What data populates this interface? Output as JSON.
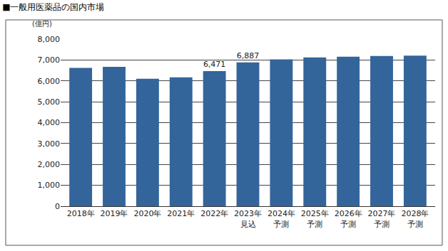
{
  "chart_data": {
    "type": "bar",
    "title": "■一般用医薬品の国内市場",
    "ylabel": "(億円)",
    "categories": [
      "2018年",
      "2019年",
      "2020年",
      "2021年",
      "2022年",
      "2023年\n見込",
      "2024年\n予測",
      "2025年\n予測",
      "2026年\n予測",
      "2027年\n予測",
      "2028年\n予測"
    ],
    "values": [
      6620,
      6670,
      6100,
      6170,
      6471,
      6887,
      7030,
      7120,
      7160,
      7190,
      7210
    ],
    "value_labels": [
      null,
      null,
      null,
      null,
      "6,471",
      "6,887",
      null,
      null,
      null,
      null,
      null
    ],
    "data_labels": true,
    "color": "#33659b",
    "ylim": [
      0,
      8000
    ],
    "yticks": [
      0,
      {
        "value": 1000,
        "label": "1,000"
      },
      {
        "value": 2000,
        "label": "2,000"
      },
      {
        "value": 3000,
        "label": "3,000"
      },
      {
        "value": 4000,
        "label": "4,000"
      },
      {
        "value": 5000,
        "label": "5,000"
      },
      {
        "value": 6000,
        "label": "6,000"
      },
      {
        "value": 7000,
        "label": "7,000"
      },
      {
        "value": 8000,
        "label": "8,000"
      }
    ],
    "grid": true
  }
}
